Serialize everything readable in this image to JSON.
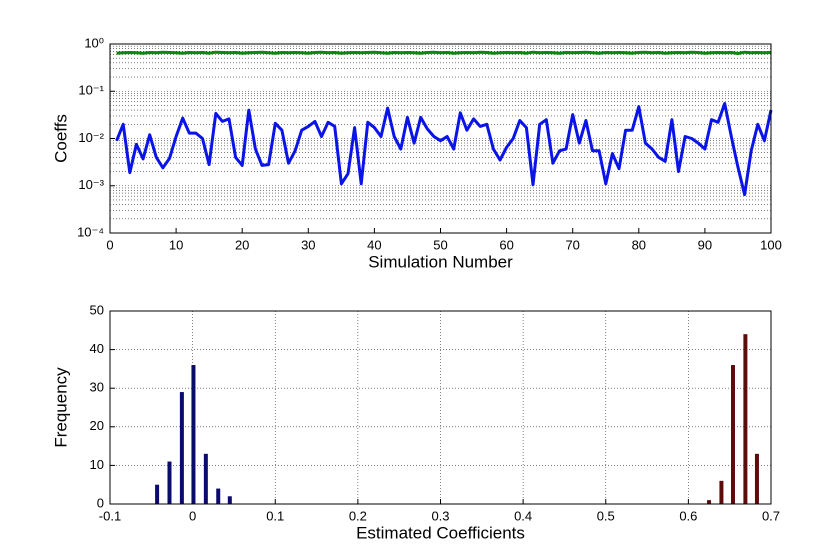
{
  "chart_data": [
    {
      "type": "line",
      "ylabel": "Coeffs",
      "xlabel": "Simulation Number",
      "log_y": true,
      "grid_y": true,
      "grid_x": false,
      "xlim": [
        0,
        100
      ],
      "xticks": [
        0,
        10,
        20,
        30,
        40,
        50,
        60,
        70,
        80,
        90,
        100
      ],
      "ylim": [
        0.0001,
        1
      ],
      "yticks": [
        {
          "value": 0.0001,
          "label": "10⁻⁴"
        },
        {
          "value": 0.001,
          "label": "10⁻³"
        },
        {
          "value": 0.01,
          "label": "10⁻²"
        },
        {
          "value": 0.1,
          "label": "10⁻¹"
        },
        {
          "value": 1,
          "label": "10⁰"
        }
      ],
      "x": [
        1,
        2,
        3,
        4,
        5,
        6,
        7,
        8,
        9,
        10,
        11,
        12,
        13,
        14,
        15,
        16,
        17,
        18,
        19,
        20,
        21,
        22,
        23,
        24,
        25,
        26,
        27,
        28,
        29,
        30,
        31,
        32,
        33,
        34,
        35,
        36,
        37,
        38,
        39,
        40,
        41,
        42,
        43,
        44,
        45,
        46,
        47,
        48,
        49,
        50,
        51,
        52,
        53,
        54,
        55,
        56,
        57,
        58,
        59,
        60,
        61,
        62,
        63,
        64,
        65,
        66,
        67,
        68,
        69,
        70,
        71,
        72,
        73,
        74,
        75,
        76,
        77,
        78,
        79,
        80,
        81,
        82,
        83,
        84,
        85,
        86,
        87,
        88,
        89,
        90,
        91,
        92,
        93,
        94,
        95,
        96,
        97,
        98,
        99,
        100
      ],
      "series": [
        {
          "color": "#0a8a0a",
          "values": [
            0.64,
            0.65,
            0.66,
            0.65,
            0.64,
            0.66,
            0.65,
            0.67,
            0.66,
            0.65,
            0.64,
            0.66,
            0.65,
            0.66,
            0.64,
            0.67,
            0.66,
            0.65,
            0.66,
            0.64,
            0.65,
            0.66,
            0.67,
            0.65,
            0.64,
            0.66,
            0.65,
            0.66,
            0.65,
            0.64,
            0.66,
            0.67,
            0.65,
            0.66,
            0.64,
            0.65,
            0.66,
            0.65,
            0.66,
            0.67,
            0.65,
            0.64,
            0.66,
            0.65,
            0.66,
            0.65,
            0.64,
            0.66,
            0.67,
            0.65,
            0.66,
            0.64,
            0.65,
            0.66,
            0.65,
            0.67,
            0.66,
            0.64,
            0.65,
            0.66,
            0.65,
            0.66,
            0.64,
            0.67,
            0.65,
            0.66,
            0.65,
            0.64,
            0.66,
            0.65,
            0.66,
            0.67,
            0.65,
            0.64,
            0.66,
            0.65,
            0.66,
            0.65,
            0.64,
            0.66,
            0.67,
            0.65,
            0.66,
            0.64,
            0.65,
            0.66,
            0.65,
            0.67,
            0.66,
            0.64,
            0.65,
            0.66,
            0.65,
            0.66,
            0.63,
            0.67,
            0.65,
            0.66,
            0.65,
            0.66
          ]
        },
        {
          "color": "#0a14e8",
          "values": [
            0.009,
            0.02,
            0.0019,
            0.0075,
            0.0037,
            0.012,
            0.004,
            0.0024,
            0.0038,
            0.011,
            0.027,
            0.013,
            0.013,
            0.01,
            0.0028,
            0.034,
            0.023,
            0.026,
            0.004,
            0.0027,
            0.04,
            0.006,
            0.0027,
            0.0028,
            0.021,
            0.015,
            0.003,
            0.0055,
            0.015,
            0.018,
            0.023,
            0.011,
            0.022,
            0.018,
            0.0011,
            0.0018,
            0.017,
            0.0011,
            0.022,
            0.017,
            0.011,
            0.044,
            0.011,
            0.006,
            0.028,
            0.008,
            0.028,
            0.016,
            0.011,
            0.009,
            0.011,
            0.006,
            0.035,
            0.015,
            0.026,
            0.018,
            0.02,
            0.006,
            0.0035,
            0.0065,
            0.01,
            0.024,
            0.017,
            0.00105,
            0.02,
            0.025,
            0.003,
            0.0055,
            0.006,
            0.032,
            0.008,
            0.024,
            0.0055,
            0.0055,
            0.0011,
            0.0048,
            0.0023,
            0.015,
            0.015,
            0.047,
            0.008,
            0.006,
            0.004,
            0.0033,
            0.025,
            0.002,
            0.011,
            0.01,
            0.008,
            0.006,
            0.025,
            0.022,
            0.055,
            0.011,
            0.0025,
            0.00065,
            0.0055,
            0.02,
            0.009,
            0.04
          ]
        }
      ]
    },
    {
      "type": "bar",
      "ylabel": "Frequency",
      "xlabel": "Estimated Coefficients",
      "grid_y": true,
      "grid_x": true,
      "xlim": [
        -0.1,
        0.7
      ],
      "xticks": [
        -0.1,
        0,
        0.1,
        0.2,
        0.3,
        0.4,
        0.5,
        0.6,
        0.7
      ],
      "ylim": [
        0,
        50
      ],
      "yticks": [
        0,
        10,
        20,
        30,
        40,
        50
      ],
      "series": [
        {
          "color": "#0b0b6e",
          "x": [
            -0.043,
            -0.028,
            -0.013,
            0.001,
            0.016,
            0.031,
            0.045
          ],
          "values": [
            5,
            11,
            29,
            36,
            13,
            4,
            2
          ]
        },
        {
          "color": "#5e0b0b",
          "x": [
            0.625,
            0.64,
            0.654,
            0.669,
            0.683
          ],
          "values": [
            1,
            6,
            36,
            44,
            13
          ]
        }
      ]
    }
  ]
}
